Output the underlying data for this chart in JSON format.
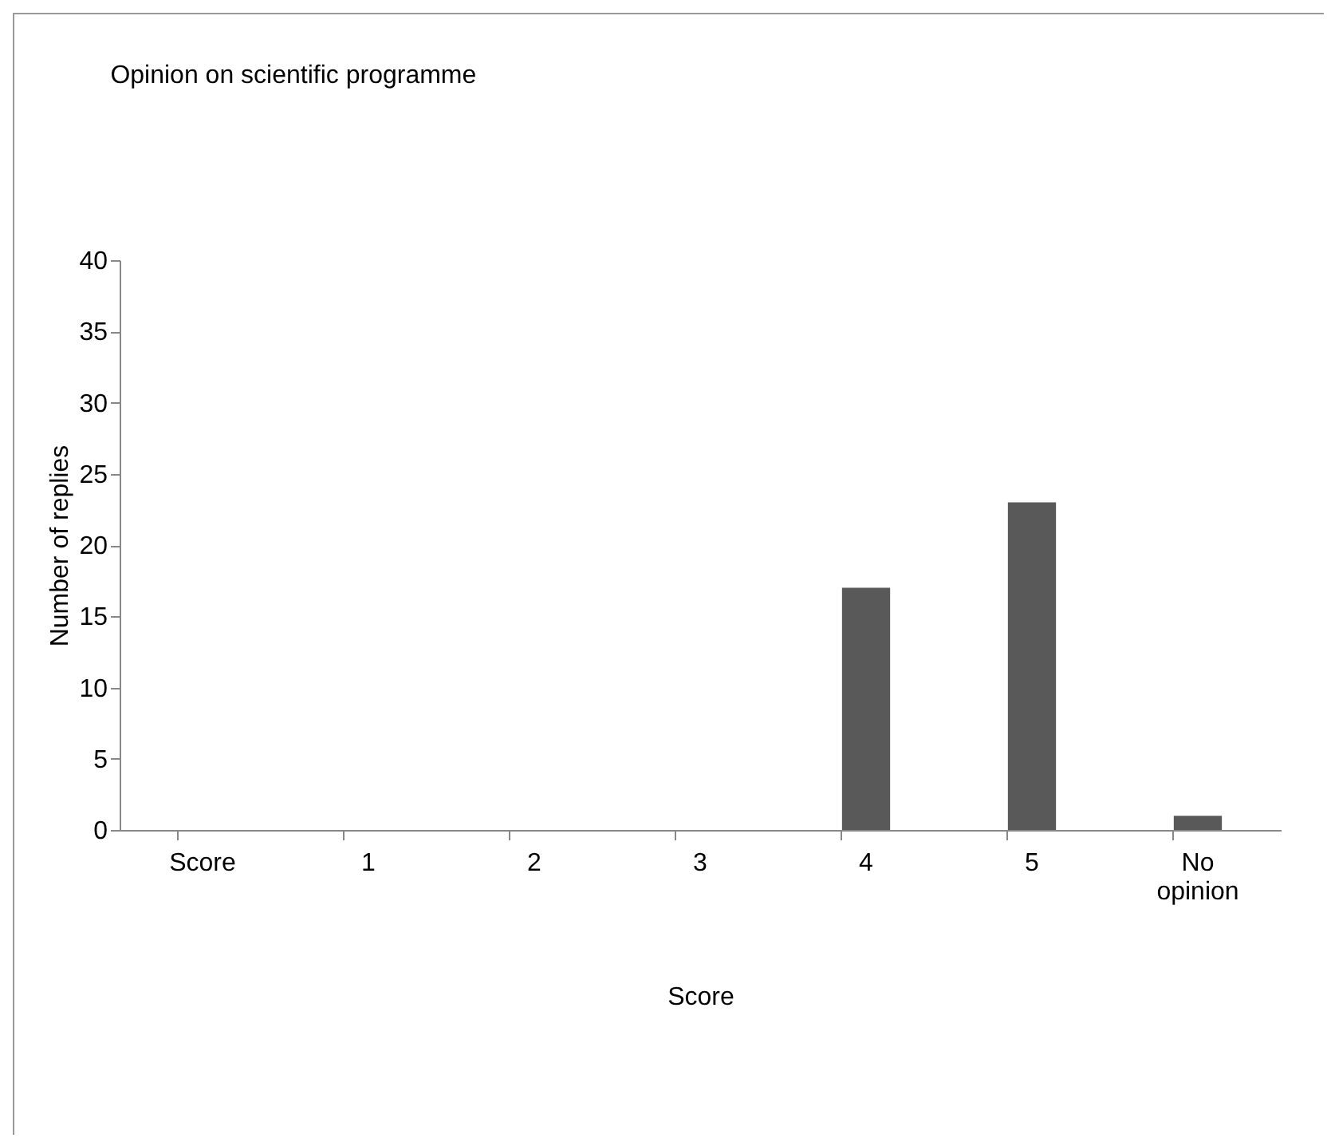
{
  "chart_data": {
    "type": "bar",
    "title": "Opinion on scientific programme",
    "xlabel": "Score",
    "ylabel": "Number of replies",
    "categories": [
      "Score",
      "1",
      "2",
      "3",
      "4",
      "5",
      "No opinion"
    ],
    "values": [
      0,
      0,
      0,
      0,
      17,
      23,
      1
    ],
    "color": "#595959",
    "ylim": [
      0,
      40
    ],
    "yticks": [
      0,
      5,
      10,
      15,
      20,
      25,
      30,
      35,
      40
    ],
    "grid": false
  }
}
